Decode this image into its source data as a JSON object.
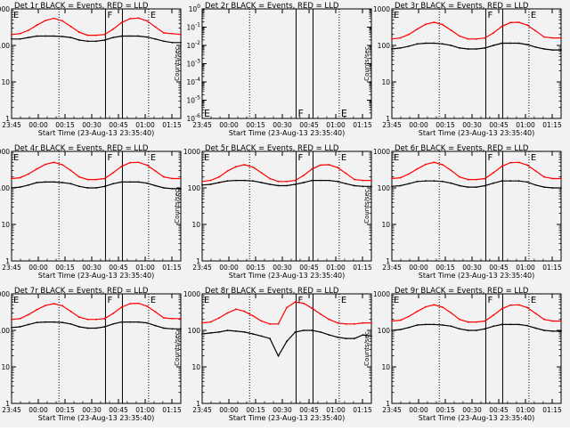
{
  "chart_data": [
    {
      "type": "line",
      "title": "Det 1r BLACK = Events, RED = LLD",
      "ylabel": "Counts/sec",
      "xlabel": "Start Time (23-Aug-13 23:35:40)",
      "xticks": [
        "23:45",
        "00:00",
        "00:15",
        "00:30",
        "00:45",
        "01:00",
        "01:15"
      ],
      "yscale": "log",
      "ylim": [
        1,
        1000
      ],
      "yticks": [
        "1",
        "10",
        "100",
        "1000"
      ],
      "flags": [
        "E",
        "F",
        "E"
      ],
      "series": [
        {
          "color": "#ff0000",
          "role": "LLD",
          "values": [
            200,
            210,
            260,
            360,
            480,
            550,
            470,
            330,
            230,
            190,
            190,
            200,
            280,
            420,
            540,
            560,
            470,
            320,
            220,
            210,
            200
          ]
        },
        {
          "color": "#000000",
          "role": "Events",
          "values": [
            150,
            150,
            165,
            180,
            180,
            180,
            175,
            165,
            140,
            130,
            130,
            140,
            165,
            180,
            180,
            180,
            170,
            150,
            130,
            120,
            120
          ]
        }
      ]
    },
    {
      "type": "line",
      "title": "Det 2r BLACK = Events, RED = LLD",
      "ylabel": "Counts/sec",
      "xlabel": "Start Time (23-Aug-13 23:35:40)",
      "xticks": [
        "23:45",
        "00:00",
        "00:15",
        "00:30",
        "00:45",
        "01:00",
        "01:15"
      ],
      "yscale": "log",
      "ylim": [
        1e-06,
        1
      ],
      "yticks": [
        "10^-6",
        "10^-5",
        "10^-4",
        "10^-3",
        "10^-2",
        "10^-1",
        "10^0"
      ],
      "flags": [
        "E",
        "F",
        "E"
      ],
      "series": []
    },
    {
      "type": "line",
      "title": "Det 3r BLACK = Events, RED = LLD",
      "ylabel": "Counts/sec",
      "xlabel": "Start Time (23-Aug-13 23:35:40)",
      "xticks": [
        "23:45",
        "00:00",
        "00:15",
        "00:30",
        "00:45",
        "01:00",
        "01:15"
      ],
      "yscale": "log",
      "ylim": [
        1,
        1000
      ],
      "yticks": [
        "1",
        "10",
        "100",
        "1000"
      ],
      "flags": [
        "E",
        "F",
        "E"
      ],
      "series": [
        {
          "color": "#ff0000",
          "role": "LLD",
          "values": [
            150,
            160,
            200,
            280,
            380,
            430,
            370,
            260,
            180,
            150,
            150,
            160,
            220,
            330,
            420,
            430,
            360,
            250,
            170,
            160,
            160
          ]
        },
        {
          "color": "#000000",
          "role": "Events",
          "values": [
            80,
            85,
            95,
            110,
            115,
            115,
            110,
            100,
            85,
            80,
            80,
            85,
            100,
            115,
            115,
            115,
            105,
            90,
            80,
            75,
            75
          ]
        }
      ]
    },
    {
      "type": "line",
      "title": "Det 4r BLACK = Events, RED = LLD",
      "ylabel": "Counts/sec",
      "xlabel": "Start Time (23-Aug-13 23:35:40)",
      "xticks": [
        "23:45",
        "00:00",
        "00:15",
        "00:30",
        "00:45",
        "01:00",
        "01:15"
      ],
      "yscale": "log",
      "ylim": [
        1,
        1000
      ],
      "yticks": [
        "1",
        "10",
        "100",
        "1000"
      ],
      "flags": [
        "E",
        "F",
        "E"
      ],
      "series": [
        {
          "color": "#ff0000",
          "role": "LLD",
          "values": [
            180,
            190,
            240,
            330,
            440,
            500,
            430,
            300,
            200,
            170,
            170,
            180,
            260,
            390,
            490,
            500,
            420,
            290,
            200,
            180,
            180
          ]
        },
        {
          "color": "#000000",
          "role": "Events",
          "values": [
            100,
            105,
            120,
            140,
            145,
            145,
            140,
            130,
            110,
            100,
            100,
            110,
            130,
            145,
            145,
            145,
            135,
            115,
            100,
            95,
            95
          ]
        }
      ]
    },
    {
      "type": "line",
      "title": "Det 5r BLACK = Events, RED = LLD",
      "ylabel": "Counts/sec",
      "xlabel": "Start Time (23-Aug-13 23:35:40)",
      "xticks": [
        "23:45",
        "00:00",
        "00:15",
        "00:30",
        "00:45",
        "01:00",
        "01:15"
      ],
      "yscale": "log",
      "ylim": [
        1,
        1000
      ],
      "yticks": [
        "1",
        "10",
        "100",
        "1000"
      ],
      "flags": [
        "E",
        "F",
        "E"
      ],
      "series": [
        {
          "color": "#ff0000",
          "role": "LLD",
          "values": [
            150,
            160,
            200,
            290,
            380,
            430,
            370,
            260,
            180,
            150,
            150,
            160,
            220,
            330,
            420,
            430,
            360,
            250,
            170,
            160,
            160
          ]
        },
        {
          "color": "#000000",
          "role": "Events",
          "values": [
            120,
            125,
            140,
            155,
            160,
            160,
            155,
            140,
            125,
            115,
            115,
            125,
            140,
            160,
            160,
            160,
            150,
            130,
            115,
            110,
            110
          ]
        }
      ]
    },
    {
      "type": "line",
      "title": "Det 6r BLACK = Events, RED = LLD",
      "ylabel": "Counts/sec",
      "xlabel": "Start Time (23-Aug-13 23:35:40)",
      "xticks": [
        "23:45",
        "00:00",
        "00:15",
        "00:30",
        "00:45",
        "01:00",
        "01:15"
      ],
      "yscale": "log",
      "ylim": [
        1,
        1000
      ],
      "yticks": [
        "1",
        "10",
        "100",
        "1000"
      ],
      "flags": [
        "E",
        "F",
        "E"
      ],
      "series": [
        {
          "color": "#ff0000",
          "role": "LLD",
          "values": [
            180,
            190,
            240,
            330,
            440,
            500,
            430,
            300,
            200,
            170,
            170,
            180,
            260,
            390,
            490,
            500,
            420,
            290,
            200,
            180,
            180
          ]
        },
        {
          "color": "#000000",
          "role": "Events",
          "values": [
            110,
            115,
            130,
            150,
            155,
            155,
            150,
            135,
            115,
            105,
            105,
            115,
            135,
            155,
            155,
            155,
            145,
            120,
            105,
            100,
            100
          ]
        }
      ]
    },
    {
      "type": "line",
      "title": "Det 7r BLACK = Events, RED = LLD",
      "ylabel": "Counts/sec",
      "xlabel": "Start Time (23-Aug-13 23:35:40)",
      "xticks": [
        "23:45",
        "00:00",
        "00:15",
        "00:30",
        "00:45",
        "01:00",
        "01:15"
      ],
      "yscale": "log",
      "ylim": [
        1,
        1000
      ],
      "yticks": [
        "1",
        "10",
        "100",
        "1000"
      ],
      "flags": [
        "E",
        "F",
        "E"
      ],
      "series": [
        {
          "color": "#ff0000",
          "role": "LLD",
          "values": [
            200,
            210,
            270,
            370,
            480,
            540,
            470,
            330,
            230,
            200,
            200,
            210,
            290,
            430,
            540,
            550,
            460,
            320,
            220,
            210,
            210
          ]
        },
        {
          "color": "#000000",
          "role": "Events",
          "values": [
            120,
            125,
            145,
            165,
            170,
            170,
            165,
            150,
            125,
            115,
            115,
            125,
            150,
            170,
            170,
            170,
            160,
            135,
            115,
            110,
            110
          ]
        }
      ]
    },
    {
      "type": "line",
      "title": "Det 8r BLACK = Events, RED = LLD",
      "ylabel": "Counts/sec",
      "xlabel": "Start Time (23-Aug-13 23:35:40)",
      "xticks": [
        "23:45",
        "00:00",
        "00:15",
        "00:30",
        "00:45",
        "01:00",
        "01:15"
      ],
      "yscale": "log",
      "ylim": [
        1,
        1000
      ],
      "yticks": [
        "1",
        "10",
        "100",
        "1000"
      ],
      "flags": [
        "E",
        "F",
        "E"
      ],
      "series": [
        {
          "color": "#ff0000",
          "role": "LLD",
          "values": [
            160,
            170,
            220,
            300,
            380,
            330,
            250,
            180,
            150,
            150,
            420,
            600,
            550,
            400,
            280,
            200,
            160,
            150,
            150,
            160,
            160
          ]
        },
        {
          "color": "#000000",
          "role": "Events",
          "values": [
            80,
            85,
            90,
            100,
            95,
            90,
            80,
            70,
            60,
            20,
            50,
            90,
            100,
            100,
            90,
            75,
            65,
            60,
            60,
            75,
            70
          ]
        }
      ]
    },
    {
      "type": "line",
      "title": "Det 9r BLACK = Events, RED = LLD",
      "ylabel": "Counts/sec",
      "xlabel": "Start Time (23-Aug-13 23:35:40)",
      "xticks": [
        "23:45",
        "00:00",
        "00:15",
        "00:30",
        "00:45",
        "01:00",
        "01:15"
      ],
      "yscale": "log",
      "ylim": [
        1,
        1000
      ],
      "yticks": [
        "1",
        "10",
        "100",
        "1000"
      ],
      "flags": [
        "E",
        "F",
        "E"
      ],
      "series": [
        {
          "color": "#ff0000",
          "role": "LLD",
          "values": [
            180,
            190,
            240,
            330,
            440,
            500,
            430,
            300,
            200,
            170,
            170,
            180,
            260,
            390,
            490,
            500,
            420,
            290,
            200,
            180,
            180
          ]
        },
        {
          "color": "#000000",
          "role": "Events",
          "values": [
            100,
            105,
            120,
            140,
            145,
            145,
            140,
            130,
            110,
            100,
            100,
            110,
            130,
            145,
            145,
            145,
            135,
            115,
            100,
            95,
            95
          ]
        }
      ]
    }
  ]
}
